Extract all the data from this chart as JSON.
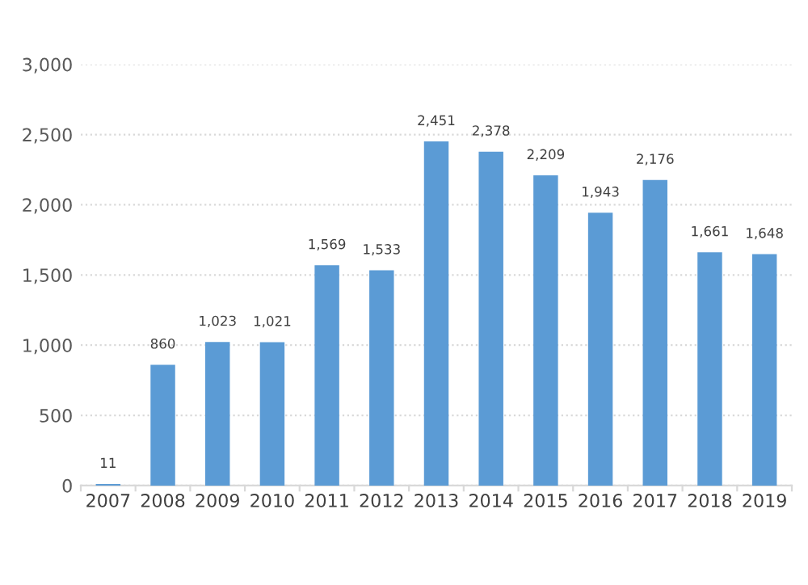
{
  "chart_data": {
    "type": "bar",
    "categories": [
      "2007",
      "2008",
      "2009",
      "2010",
      "2011",
      "2012",
      "2013",
      "2014",
      "2015",
      "2016",
      "2017",
      "2018",
      "2019"
    ],
    "values": [
      11,
      860,
      1023,
      1021,
      1569,
      1533,
      2451,
      2378,
      2209,
      1943,
      2176,
      1661,
      1648
    ],
    "value_labels": [
      "11",
      "860",
      "1,023",
      "1,021",
      "1,569",
      "1,533",
      "2,451",
      "2,378",
      "2,209",
      "1,943",
      "2,176",
      "1,661",
      "1,648"
    ],
    "color": "#5b9bd5",
    "ylim": [
      0,
      3000
    ],
    "yticks": [
      {
        "value": 0,
        "label": "0"
      },
      {
        "value": 500,
        "label": "500"
      },
      {
        "value": 1000,
        "label": "1,000"
      },
      {
        "value": 1500,
        "label": "1,500"
      },
      {
        "value": 2000,
        "label": "2,000"
      },
      {
        "value": 2500,
        "label": "2,500"
      },
      {
        "value": 3000,
        "label": "3,000"
      }
    ],
    "grid": "y",
    "legend": false
  }
}
